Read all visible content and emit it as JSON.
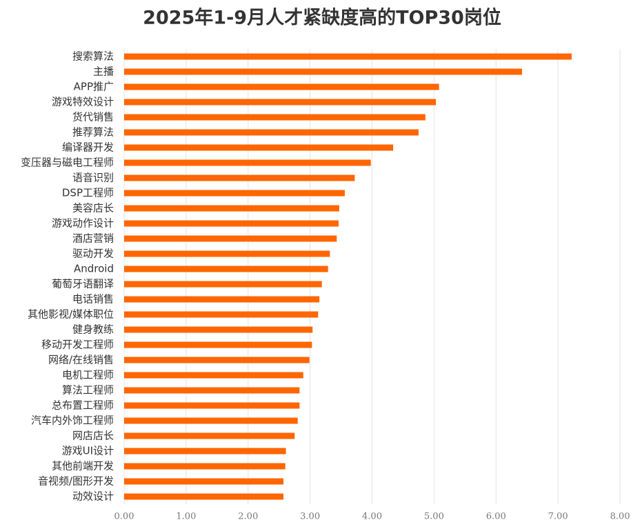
{
  "chart_data": {
    "type": "barh",
    "title": "2025年1-9月人才紧缺度高的TOP30岗位",
    "categories": [
      "搜索算法",
      "主播",
      "APP推广",
      "游戏特效设计",
      "货代销售",
      "推荐算法",
      "编译器开发",
      "变压器与磁电工程师",
      "语音识别",
      "DSP工程师",
      "美容店长",
      "游戏动作设计",
      "酒店营销",
      "驱动开发",
      "Android",
      "葡萄牙语翻译",
      "电话销售",
      "其他影视/媒体职位",
      "健身教练",
      "移动开发工程师",
      "网络/在线销售",
      "电机工程师",
      "算法工程师",
      "总布置工程师",
      "汽车内外饰工程师",
      "网店店长",
      "游戏UI设计",
      "其他前端开发",
      "音视频/图形开发",
      "动效设计"
    ],
    "values": [
      7.22,
      6.42,
      5.08,
      5.03,
      4.86,
      4.75,
      4.34,
      3.98,
      3.72,
      3.56,
      3.47,
      3.46,
      3.43,
      3.32,
      3.29,
      3.19,
      3.15,
      3.13,
      3.04,
      3.03,
      2.99,
      2.89,
      2.83,
      2.83,
      2.8,
      2.75,
      2.61,
      2.6,
      2.57,
      2.57
    ],
    "color": "#ff6600",
    "xlim": [
      0,
      8
    ],
    "xticks": [
      {
        "value": 0,
        "label": "0.00"
      },
      {
        "value": 1,
        "label": "1.00"
      },
      {
        "value": 2,
        "label": "2.00"
      },
      {
        "value": 3,
        "label": "3.00"
      },
      {
        "value": 4,
        "label": "4.00"
      },
      {
        "value": 5,
        "label": "5.00"
      },
      {
        "value": 6,
        "label": "6.00"
      },
      {
        "value": 7,
        "label": "7.00"
      },
      {
        "value": 8,
        "label": "8.00"
      }
    ],
    "grid": true
  }
}
